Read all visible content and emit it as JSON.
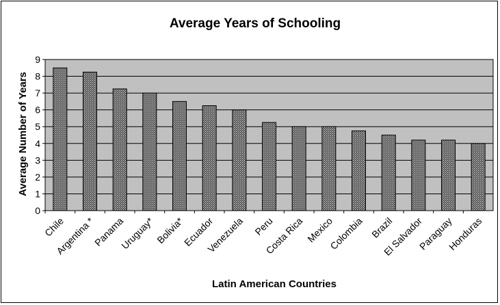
{
  "chart_data": {
    "type": "bar",
    "title": "Average Years of Schooling",
    "xlabel": "Latin American Countries",
    "ylabel": "Average Number of Years",
    "categories": [
      "Chile",
      "Argentina *",
      "Panama",
      "Uruguay*",
      "Bolivia*",
      "Ecuador",
      "Venezuela",
      "Peru",
      "Costa Rica",
      "Mexico",
      "Colombia",
      "Brazil",
      "El Salvador",
      "Paraguay",
      "Honduras"
    ],
    "values": [
      8.5,
      8.25,
      7.25,
      7.0,
      6.5,
      6.25,
      6.0,
      5.25,
      5.0,
      5.0,
      4.75,
      4.5,
      4.2,
      4.2,
      4.0
    ],
    "yticks": [
      "0",
      "1",
      "2",
      "3",
      "4",
      "5",
      "6",
      "7",
      "8",
      "9"
    ],
    "ylim": [
      0,
      9
    ],
    "grid": true,
    "colors": {
      "plot_background": "#c0c0c0",
      "bar_fill": "#5a5a5a",
      "bar_hatch": "#d8d8d8",
      "gridline": "#000000"
    }
  }
}
